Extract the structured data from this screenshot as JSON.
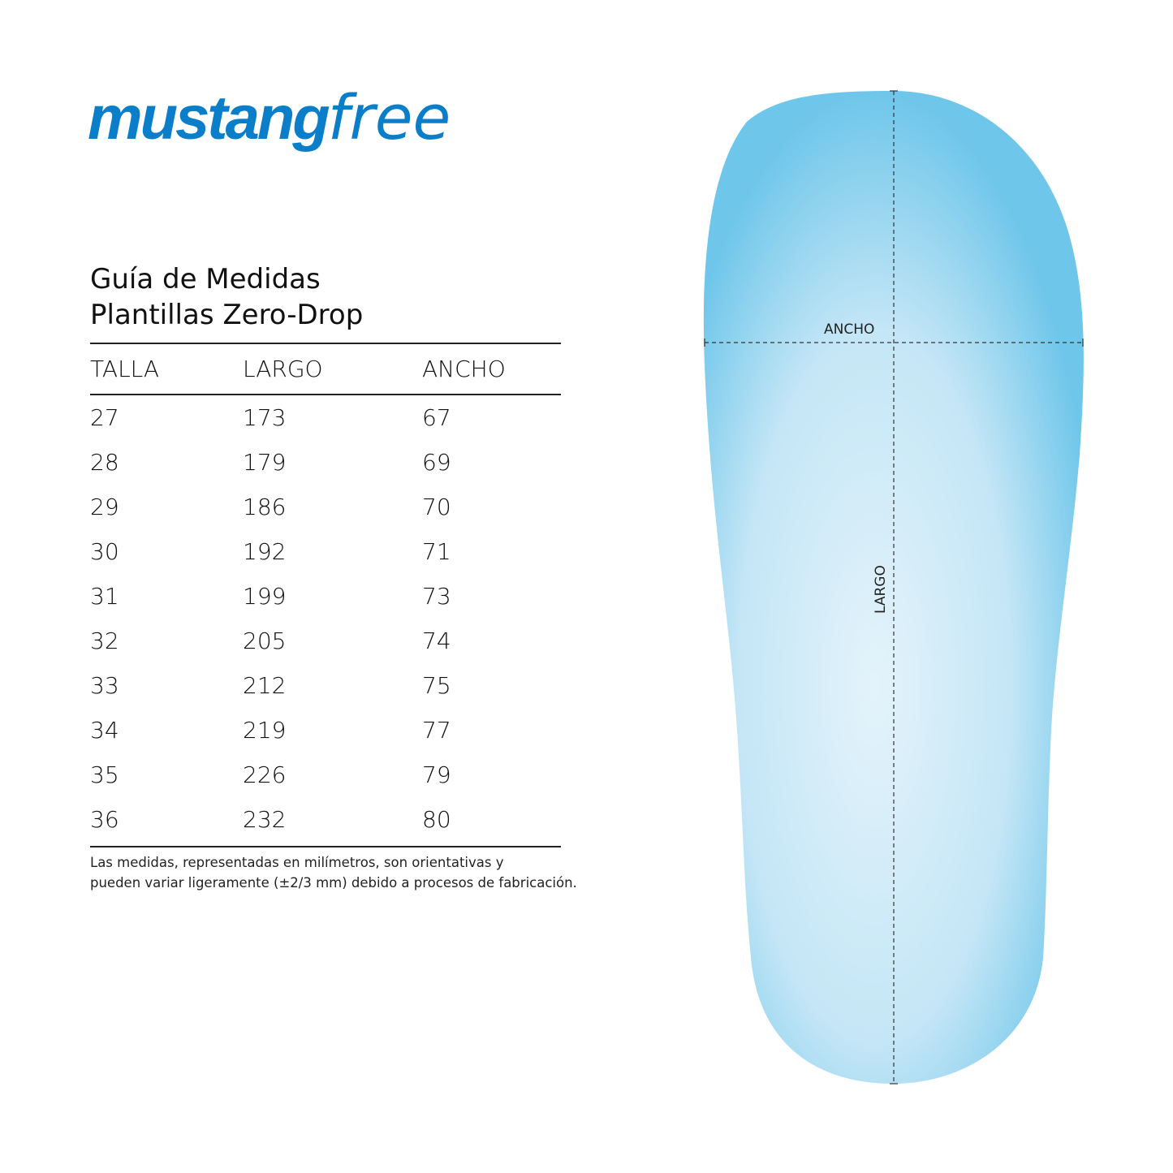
{
  "brand": {
    "bold": "mustang",
    "light": "free",
    "color": "#0a7ec8"
  },
  "title": {
    "line1": "Guía de Medidas",
    "line2": "Plantillas Zero-Drop"
  },
  "table": {
    "headers": [
      "TALLA",
      "LARGO",
      "ANCHO"
    ],
    "rows": [
      [
        "27",
        "173",
        "67"
      ],
      [
        "28",
        "179",
        "69"
      ],
      [
        "29",
        "186",
        "70"
      ],
      [
        "30",
        "192",
        "71"
      ],
      [
        "31",
        "199",
        "73"
      ],
      [
        "32",
        "205",
        "74"
      ],
      [
        "33",
        "212",
        "75"
      ],
      [
        "34",
        "219",
        "77"
      ],
      [
        "35",
        "226",
        "79"
      ],
      [
        "36",
        "232",
        "80"
      ]
    ]
  },
  "note": {
    "line1": "Las medidas, representadas en milímetros, son orientativas y",
    "line2": "pueden variar ligeramente (±2/3 mm) debido a procesos de fabricación."
  },
  "insole": {
    "width_label": "ANCHO",
    "length_label": "LARGO",
    "fill_color": "#6ec6ea"
  }
}
